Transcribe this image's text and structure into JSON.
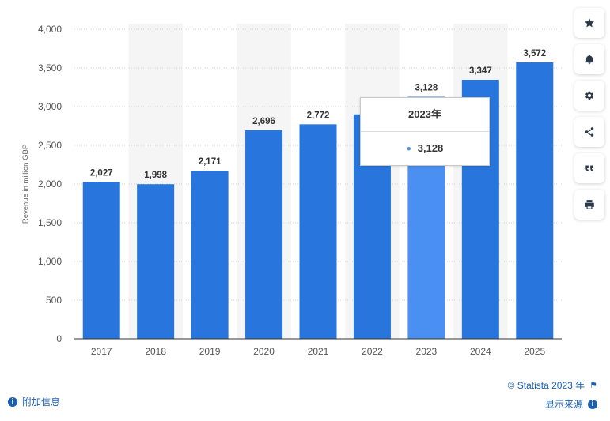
{
  "chart_data": {
    "type": "bar",
    "categories": [
      "2017",
      "2018",
      "2019",
      "2020",
      "2021",
      "2022",
      "2023",
      "2024",
      "2025"
    ],
    "values": [
      2027,
      1998,
      2171,
      2696,
      2772,
      2900,
      3128,
      3347,
      3572
    ],
    "data_labels": [
      "2,027",
      "1,998",
      "2,171",
      "2,696",
      "2,772",
      "",
      "3,128",
      "3,347",
      "3,572"
    ],
    "ylabel": "Revenue in million GBP",
    "xlabel": "",
    "ylim": [
      0,
      4000
    ],
    "yticks": [
      0,
      500,
      1000,
      1500,
      2000,
      2500,
      3000,
      3500,
      4000
    ],
    "ytick_labels": [
      "0",
      "500",
      "1,000",
      "1,500",
      "2,000",
      "2,500",
      "3,000",
      "3,500",
      "4,000"
    ],
    "grid": true,
    "highlighted_index": 6,
    "colors": {
      "bar": "#2876dd",
      "bar_highlight": "#4a90f2",
      "band": "#f5f5f5",
      "grid": "#d0d0d0"
    }
  },
  "tooltip": {
    "title": "2023年",
    "value": "3,128"
  },
  "toolbar": {
    "icons": [
      "star-icon",
      "bell-icon",
      "gear-icon",
      "share-icon",
      "quote-icon",
      "print-icon"
    ]
  },
  "footer": {
    "additional_info": "附加信息",
    "copyright": "© Statista 2023 年",
    "show_source": "显示来源"
  }
}
